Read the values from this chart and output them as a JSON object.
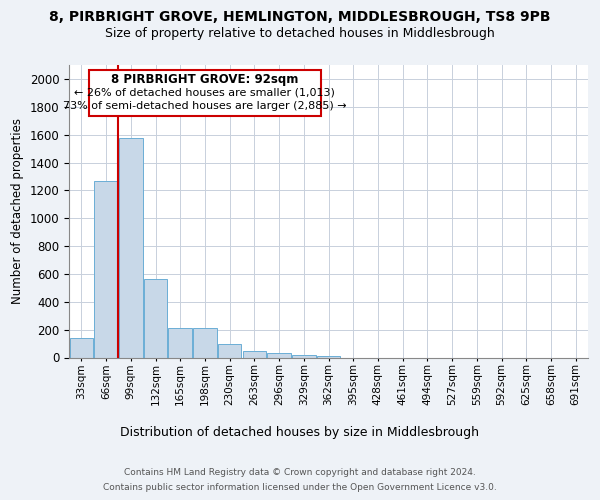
{
  "title_line1": "8, PIRBRIGHT GROVE, HEMLINGTON, MIDDLESBROUGH, TS8 9PB",
  "title_line2": "Size of property relative to detached houses in Middlesbrough",
  "xlabel": "Distribution of detached houses by size in Middlesbrough",
  "ylabel": "Number of detached properties",
  "footer_line1": "Contains HM Land Registry data © Crown copyright and database right 2024.",
  "footer_line2": "Contains public sector information licensed under the Open Government Licence v3.0.",
  "annotation_title": "8 PIRBRIGHT GROVE: 92sqm",
  "annotation_line1": "← 26% of detached houses are smaller (1,013)",
  "annotation_line2": "73% of semi-detached houses are larger (2,885) →",
  "bar_color": "#c8d8e8",
  "bar_edge_color": "#6baed6",
  "vline_color": "#cc0000",
  "vline_x": 2,
  "categories": [
    "33sqm",
    "66sqm",
    "99sqm",
    "132sqm",
    "165sqm",
    "198sqm",
    "230sqm",
    "263sqm",
    "296sqm",
    "329sqm",
    "362sqm",
    "395sqm",
    "428sqm",
    "461sqm",
    "494sqm",
    "527sqm",
    "559sqm",
    "592sqm",
    "625sqm",
    "658sqm",
    "691sqm"
  ],
  "values": [
    140,
    1265,
    1575,
    565,
    215,
    215,
    95,
    50,
    30,
    15,
    10,
    0,
    0,
    0,
    0,
    0,
    0,
    0,
    0,
    0,
    0
  ],
  "ylim": [
    0,
    2100
  ],
  "background_color": "#eef2f7",
  "plot_bg_color": "#ffffff",
  "grid_color": "#c8d0dc"
}
